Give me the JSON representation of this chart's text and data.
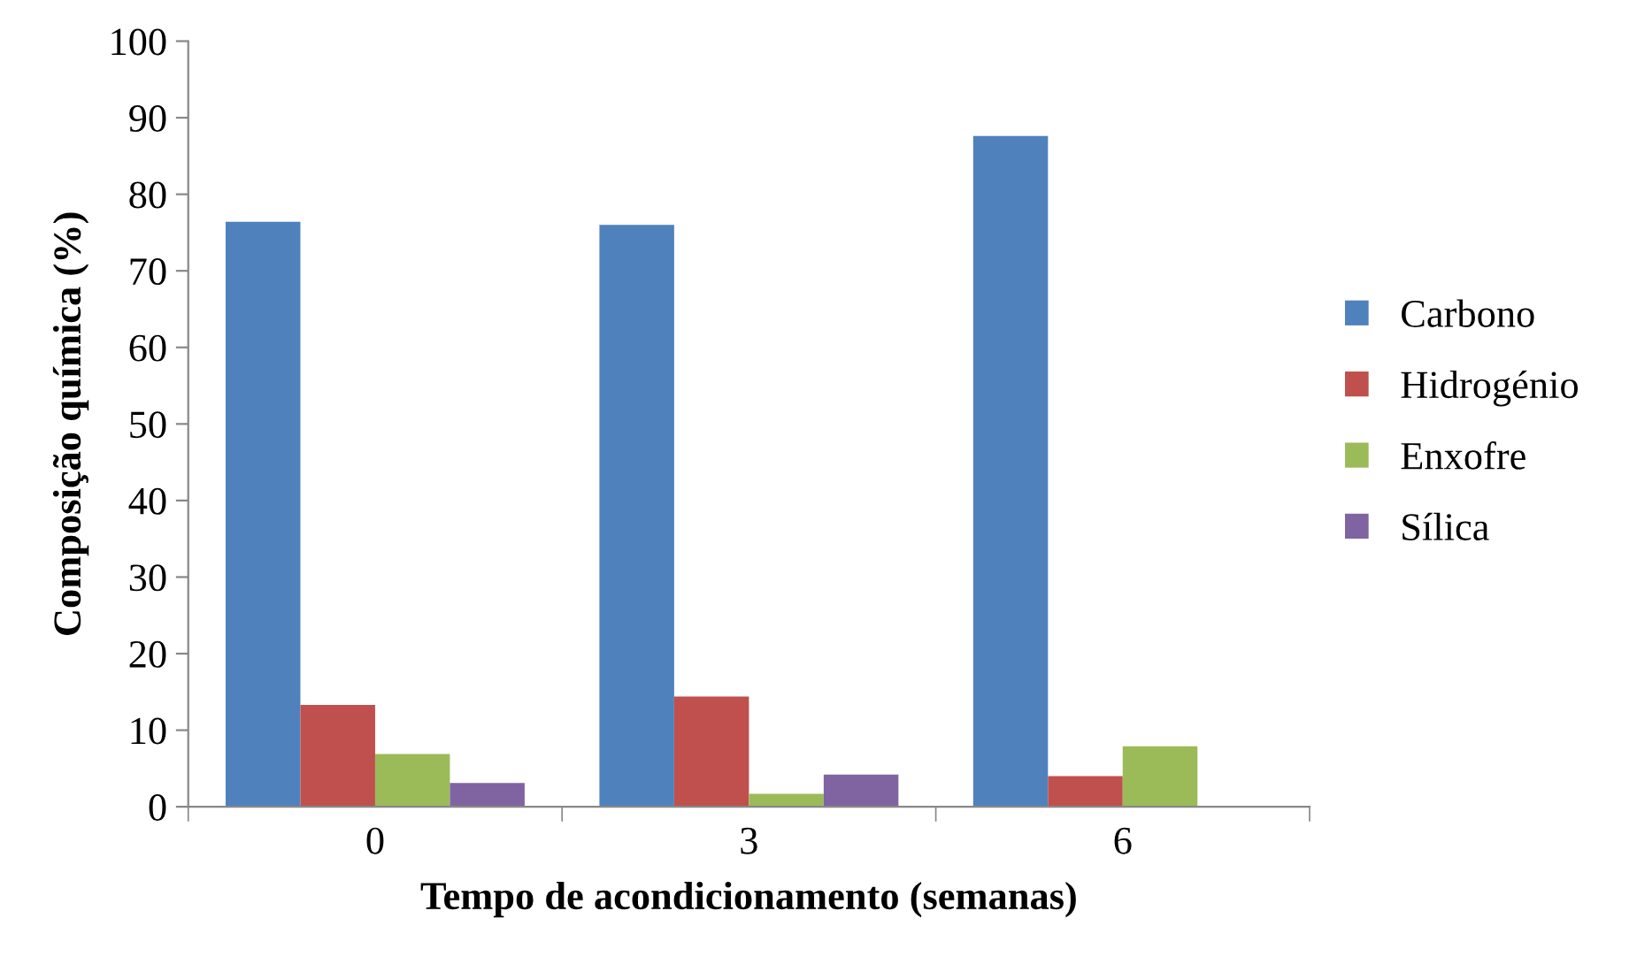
{
  "chart_data": {
    "type": "bar",
    "xlabel": "Tempo de acondicionamento (semanas)",
    "ylabel": "Composição química (%)",
    "categories": [
      "0",
      "3",
      "6"
    ],
    "series": [
      {
        "name": "Carbono",
        "color": "#4f81bd",
        "values": [
          76.4,
          76.0,
          87.6
        ]
      },
      {
        "name": "Hidrogénio",
        "color": "#c0504d",
        "values": [
          13.3,
          14.4,
          4.0
        ]
      },
      {
        "name": "Enxofre",
        "color": "#9bbb59",
        "values": [
          6.9,
          1.7,
          7.9
        ]
      },
      {
        "name": "Sílica",
        "color": "#8064a2",
        "values": [
          3.1,
          4.2,
          null
        ]
      }
    ],
    "ylim": [
      0,
      100
    ],
    "yticks": [
      0,
      10,
      20,
      30,
      40,
      50,
      60,
      70,
      80,
      90,
      100
    ],
    "grid": false,
    "legend": "right"
  }
}
